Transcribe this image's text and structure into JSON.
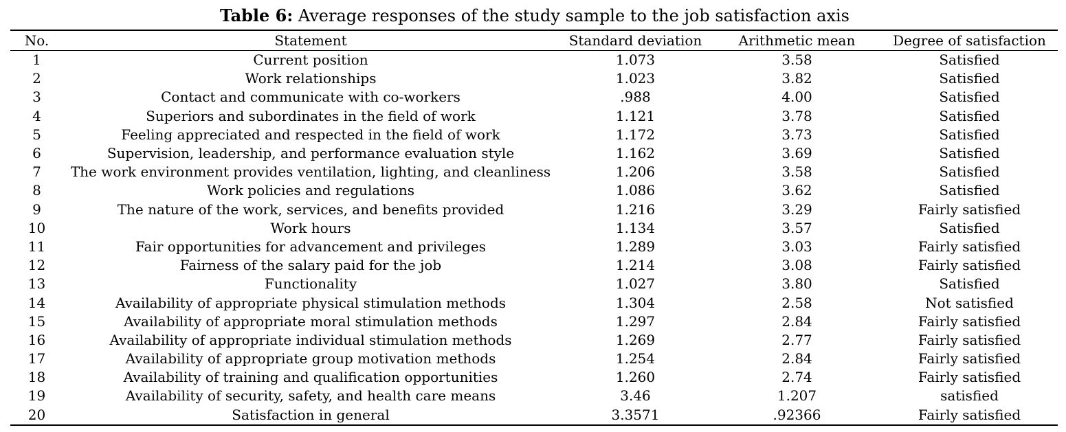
{
  "caption": {
    "label": "Table 6:",
    "text": "Average responses of the study sample to the job satisfaction axis"
  },
  "columns": [
    "No.",
    "Statement",
    "Standard deviation",
    "Arithmetic mean",
    "Degree of satisfaction"
  ],
  "rows": [
    {
      "no": "1",
      "statement": "Current position",
      "sd": "1.073",
      "mean": "3.58",
      "degree": "Satisfied"
    },
    {
      "no": "2",
      "statement": "Work relationships",
      "sd": "1.023",
      "mean": "3.82",
      "degree": "Satisfied"
    },
    {
      "no": "3",
      "statement": "Contact and communicate with co-workers",
      "sd": ".988",
      "mean": "4.00",
      "degree": "Satisfied"
    },
    {
      "no": "4",
      "statement": "Superiors and subordinates in the field of work",
      "sd": "1.121",
      "mean": "3.78",
      "degree": "Satisfied"
    },
    {
      "no": "5",
      "statement": "Feeling appreciated and respected in the field of work",
      "sd": "1.172",
      "mean": "3.73",
      "degree": "Satisfied"
    },
    {
      "no": "6",
      "statement": "Supervision, leadership, and performance evaluation style",
      "sd": "1.162",
      "mean": "3.69",
      "degree": "Satisfied"
    },
    {
      "no": "7",
      "statement": "The work environment provides ventilation, lighting, and cleanliness",
      "sd": "1.206",
      "mean": "3.58",
      "degree": "Satisfied"
    },
    {
      "no": "8",
      "statement": "Work policies and regulations",
      "sd": "1.086",
      "mean": "3.62",
      "degree": "Satisfied"
    },
    {
      "no": "9",
      "statement": "The nature of the work, services, and benefits provided",
      "sd": "1.216",
      "mean": "3.29",
      "degree": "Fairly satisfied"
    },
    {
      "no": "10",
      "statement": "Work hours",
      "sd": "1.134",
      "mean": "3.57",
      "degree": "Satisfied"
    },
    {
      "no": "11",
      "statement": "Fair opportunities for advancement and privileges",
      "sd": "1.289",
      "mean": "3.03",
      "degree": "Fairly satisfied"
    },
    {
      "no": "12",
      "statement": "Fairness of the salary paid for the job",
      "sd": "1.214",
      "mean": "3.08",
      "degree": "Fairly satisfied"
    },
    {
      "no": "13",
      "statement": "Functionality",
      "sd": "1.027",
      "mean": "3.80",
      "degree": "Satisfied"
    },
    {
      "no": "14",
      "statement": "Availability of appropriate physical stimulation methods",
      "sd": "1.304",
      "mean": "2.58",
      "degree": "Not satisfied"
    },
    {
      "no": "15",
      "statement": "Availability of appropriate moral stimulation methods",
      "sd": "1.297",
      "mean": "2.84",
      "degree": "Fairly satisfied"
    },
    {
      "no": "16",
      "statement": "Availability of appropriate individual stimulation methods",
      "sd": "1.269",
      "mean": "2.77",
      "degree": "Fairly satisfied"
    },
    {
      "no": "17",
      "statement": "Availability of appropriate group motivation methods",
      "sd": "1.254",
      "mean": "2.84",
      "degree": "Fairly satisfied"
    },
    {
      "no": "18",
      "statement": "Availability of training and qualification opportunities",
      "sd": "1.260",
      "mean": "2.74",
      "degree": "Fairly satisfied"
    },
    {
      "no": "19",
      "statement": "Availability of security, safety, and health care means",
      "sd": "3.46",
      "mean": "1.207",
      "degree": "satisfied"
    },
    {
      "no": "20",
      "statement": "Satisfaction in general",
      "sd": "3.3571",
      "mean": ".92366",
      "degree": "Fairly satisfied"
    }
  ]
}
